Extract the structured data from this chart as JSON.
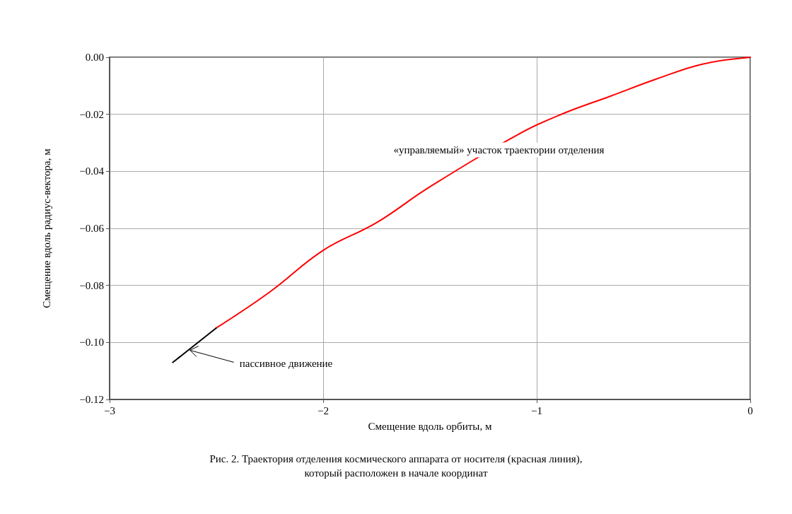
{
  "chart_data": {
    "type": "line",
    "title": "Рис. 2. Траектория отделения космического аппарата от носителя (красная линия),\nкоторый расположен в начале координат",
    "xlabel": "Смещение вдоль орбиты, м",
    "ylabel": "Смещение вдоль радиус-вектора, м",
    "xlim": [
      -3,
      0
    ],
    "ylim": [
      -0.12,
      0
    ],
    "xticks": [
      {
        "value": -3,
        "label": "−3"
      },
      {
        "value": -2,
        "label": "−2"
      },
      {
        "value": -1,
        "label": "−1"
      },
      0
    ],
    "yticks": [
      {
        "value": -0.12,
        "label": "−0.12"
      },
      {
        "value": -0.1,
        "label": "−0.10"
      },
      {
        "value": -0.08,
        "label": "−0.08"
      },
      {
        "value": -0.06,
        "label": "−0.06"
      },
      {
        "value": -0.04,
        "label": "−0.04"
      },
      {
        "value": -0.02,
        "label": "−0.02"
      },
      {
        "value": 0,
        "label": "0.00"
      }
    ],
    "grid": true,
    "marker": "none",
    "line_style": "solid",
    "series": [
      {
        "color": "#ff0000",
        "x": [
          0,
          -0.224,
          -0.442,
          -0.657,
          -0.875,
          -1.07,
          -1.5,
          -1.75,
          -2,
          -2.25,
          -2.502
        ],
        "values": [
          0,
          -0.0024,
          -0.0077,
          -0.0137,
          -0.0197,
          -0.0264,
          -0.0454,
          -0.058,
          -0.0677,
          -0.0823,
          -0.095
        ]
      },
      {
        "color": "#000000",
        "x": [
          -2.502,
          -2.704
        ],
        "values": [
          -0.095,
          -0.107
        ]
      }
    ],
    "annotations": [
      "«управляемый» участок траектории отделения",
      {
        "text": "пассивное движение",
        "x": -2.63,
        "y": -0.1025
      }
    ]
  }
}
